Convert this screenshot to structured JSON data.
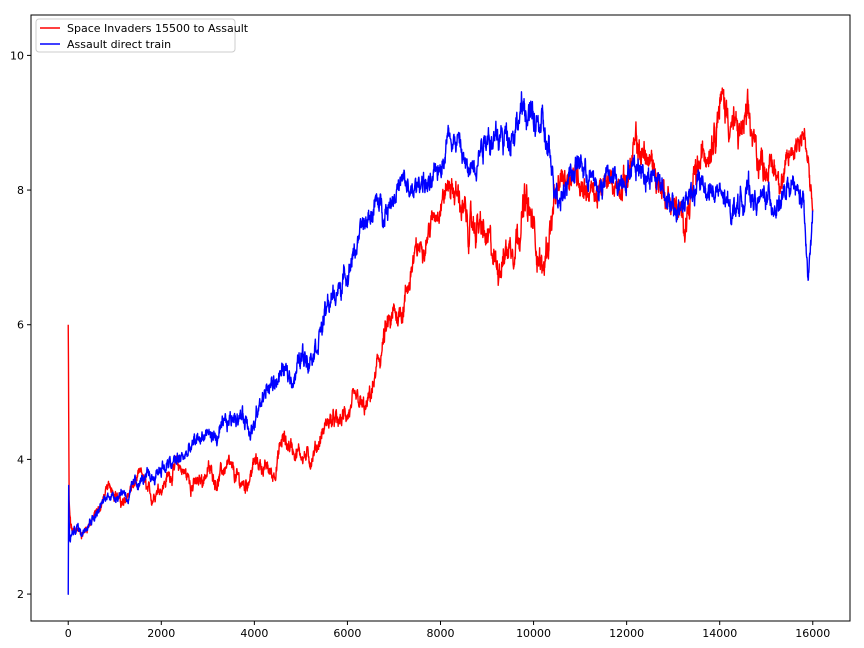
{
  "chart_data": {
    "type": "line",
    "title": "",
    "xlabel": "",
    "ylabel": "",
    "xlim": [
      -800,
      16800
    ],
    "ylim": [
      1.6,
      10.6
    ],
    "xticks": [
      0,
      2000,
      4000,
      6000,
      8000,
      10000,
      12000,
      14000,
      16000
    ],
    "yticks": [
      2,
      4,
      6,
      8,
      10
    ],
    "grid": false,
    "legend_position": "top-left",
    "series": [
      {
        "name": "Space Invaders 15500 to Assault",
        "color": "#ff0000",
        "x": [
          0,
          10,
          20,
          50,
          100,
          200,
          300,
          400,
          500,
          600,
          700,
          800,
          900,
          1000,
          1100,
          1200,
          1300,
          1400,
          1500,
          1600,
          1700,
          1800,
          1900,
          2000,
          2200,
          2400,
          2600,
          2800,
          3000,
          3200,
          3400,
          3600,
          3800,
          4000,
          4200,
          4400,
          4600,
          4800,
          5000,
          5200,
          5400,
          5600,
          5800,
          6000,
          6200,
          6400,
          6600,
          6800,
          7000,
          7200,
          7400,
          7600,
          7800,
          8000,
          8200,
          8400,
          8600,
          8800,
          9000,
          9200,
          9400,
          9600,
          9800,
          10000,
          10200,
          10400,
          10600,
          10800,
          11000,
          11200,
          11400,
          11600,
          11800,
          12000,
          12200,
          12400,
          12600,
          12800,
          13000,
          13200,
          13400,
          13600,
          13800,
          14000,
          14200,
          14400,
          14600,
          14800,
          15000,
          15200,
          15400,
          15600,
          15800,
          16000
        ],
        "y": [
          6.0,
          4.5,
          3.3,
          3.0,
          2.9,
          2.95,
          2.9,
          3.0,
          3.1,
          3.2,
          3.3,
          3.5,
          3.6,
          3.55,
          3.4,
          3.3,
          3.5,
          3.6,
          3.7,
          3.75,
          3.5,
          3.4,
          3.6,
          3.6,
          3.8,
          3.9,
          3.7,
          3.6,
          3.85,
          3.7,
          3.9,
          3.7,
          3.6,
          3.95,
          3.9,
          3.75,
          4.3,
          4.2,
          4.1,
          4.0,
          4.3,
          4.6,
          4.5,
          4.7,
          4.8,
          4.7,
          5.2,
          5.8,
          6.1,
          6.3,
          6.9,
          7.2,
          7.5,
          7.9,
          8.1,
          7.9,
          7.4,
          7.5,
          7.2,
          6.9,
          7.1,
          7.3,
          7.8,
          7.4,
          6.8,
          7.6,
          8.1,
          8.3,
          8.2,
          8.0,
          7.9,
          8.1,
          8.1,
          8.2,
          8.6,
          8.5,
          8.3,
          8.0,
          7.8,
          7.5,
          7.9,
          8.4,
          8.8,
          9.4,
          9.1,
          8.8,
          9.0,
          8.5,
          8.4,
          8.3,
          8.2,
          8.7,
          8.9,
          7.7
        ],
        "noise": [
          0.9,
          0.5,
          0.25,
          0.2,
          0.15,
          0.15,
          0.15,
          0.15,
          0.15,
          0.15,
          0.15,
          0.15,
          0.15,
          0.2,
          0.2,
          0.2,
          0.2,
          0.2,
          0.2,
          0.2,
          0.2,
          0.2,
          0.2,
          0.2,
          0.25,
          0.25,
          0.25,
          0.25,
          0.25,
          0.25,
          0.25,
          0.25,
          0.25,
          0.25,
          0.25,
          0.25,
          0.3,
          0.3,
          0.25,
          0.25,
          0.25,
          0.3,
          0.3,
          0.3,
          0.3,
          0.3,
          0.35,
          0.4,
          0.4,
          0.4,
          0.4,
          0.35,
          0.35,
          0.4,
          0.4,
          0.45,
          0.5,
          0.5,
          0.5,
          0.5,
          0.5,
          0.5,
          0.55,
          0.55,
          0.5,
          0.5,
          0.45,
          0.45,
          0.45,
          0.4,
          0.4,
          0.4,
          0.4,
          0.45,
          0.5,
          0.5,
          0.5,
          0.45,
          0.45,
          0.45,
          0.5,
          0.5,
          0.55,
          0.6,
          0.55,
          0.5,
          0.5,
          0.5,
          0.45,
          0.45,
          0.45,
          0.45,
          0.45,
          0.35
        ]
      },
      {
        "name": "Assault direct train",
        "color": "#0000ff",
        "x": [
          0,
          10,
          30,
          100,
          200,
          300,
          400,
          500,
          600,
          700,
          800,
          900,
          1000,
          1100,
          1200,
          1300,
          1400,
          1600,
          1800,
          2000,
          2200,
          2400,
          2600,
          2800,
          3000,
          3200,
          3400,
          3600,
          3800,
          4000,
          4200,
          4400,
          4600,
          4800,
          5000,
          5200,
          5400,
          5600,
          5800,
          6000,
          6200,
          6400,
          6600,
          6800,
          7000,
          7200,
          7400,
          7600,
          7800,
          8000,
          8200,
          8400,
          8600,
          8800,
          9000,
          9200,
          9400,
          9600,
          9800,
          10000,
          10200,
          10400,
          10600,
          10800,
          11000,
          11200,
          11400,
          11600,
          11800,
          12000,
          12200,
          12400,
          12600,
          12800,
          13000,
          13200,
          13400,
          13600,
          13800,
          14000,
          14200,
          14400,
          14600,
          14800,
          15000,
          15200,
          15400,
          15600,
          15800,
          15900,
          16000
        ],
        "y": [
          2.0,
          3.5,
          2.8,
          2.9,
          3.0,
          2.9,
          3.1,
          3.15,
          3.2,
          3.3,
          3.4,
          3.5,
          3.45,
          3.5,
          3.55,
          3.4,
          3.6,
          3.7,
          3.7,
          3.9,
          3.9,
          4.0,
          4.1,
          4.3,
          4.4,
          4.3,
          4.5,
          4.7,
          4.6,
          4.5,
          5.0,
          5.1,
          5.3,
          5.2,
          5.5,
          5.6,
          5.9,
          6.3,
          6.5,
          6.8,
          7.2,
          7.5,
          7.8,
          7.7,
          8.0,
          8.1,
          7.9,
          8.2,
          8.0,
          8.4,
          8.9,
          8.7,
          8.2,
          8.6,
          8.9,
          8.7,
          8.8,
          9.0,
          9.2,
          9.0,
          8.9,
          8.2,
          8.0,
          8.3,
          8.4,
          8.2,
          8.0,
          8.2,
          8.1,
          8.3,
          8.4,
          8.3,
          8.2,
          8.1,
          7.6,
          7.8,
          7.9,
          8.1,
          8.0,
          7.9,
          7.7,
          7.8,
          8.0,
          7.8,
          7.9,
          7.8,
          7.9,
          8.0,
          7.8,
          6.6,
          7.6
        ],
        "noise": [
          0.1,
          0.4,
          0.2,
          0.15,
          0.15,
          0.15,
          0.15,
          0.15,
          0.15,
          0.15,
          0.15,
          0.15,
          0.15,
          0.15,
          0.15,
          0.15,
          0.2,
          0.2,
          0.2,
          0.25,
          0.25,
          0.25,
          0.25,
          0.25,
          0.25,
          0.25,
          0.25,
          0.3,
          0.3,
          0.3,
          0.3,
          0.3,
          0.3,
          0.3,
          0.35,
          0.35,
          0.35,
          0.35,
          0.35,
          0.35,
          0.35,
          0.35,
          0.35,
          0.35,
          0.35,
          0.35,
          0.35,
          0.35,
          0.35,
          0.4,
          0.4,
          0.4,
          0.4,
          0.45,
          0.45,
          0.45,
          0.45,
          0.5,
          0.5,
          0.5,
          0.5,
          0.45,
          0.45,
          0.4,
          0.4,
          0.4,
          0.4,
          0.4,
          0.4,
          0.4,
          0.4,
          0.4,
          0.4,
          0.4,
          0.45,
          0.4,
          0.4,
          0.4,
          0.4,
          0.4,
          0.4,
          0.4,
          0.4,
          0.35,
          0.35,
          0.35,
          0.35,
          0.35,
          0.35,
          0.3,
          0.3
        ]
      }
    ]
  }
}
